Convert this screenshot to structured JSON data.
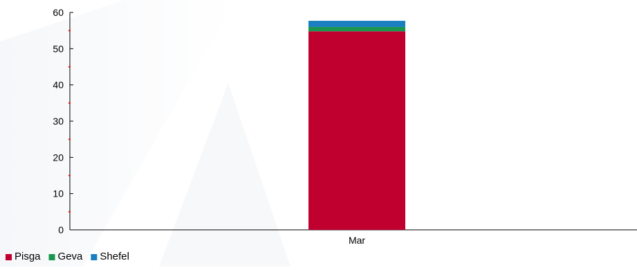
{
  "chart_data": {
    "type": "bar",
    "stacked": true,
    "categories": [
      "Mar"
    ],
    "series": [
      {
        "name": "Pisga",
        "values": [
          54.8
        ],
        "color": "#c0002f"
      },
      {
        "name": "Geva",
        "values": [
          1.2
        ],
        "color": "#1a9650"
      },
      {
        "name": "Shefel",
        "values": [
          1.7
        ],
        "color": "#1a7fc1"
      }
    ],
    "ylim": [
      0,
      60
    ],
    "yticks": [
      0,
      10,
      20,
      30,
      40,
      50,
      60
    ],
    "grid": false,
    "legend_position": "bottom-left",
    "title": "",
    "xlabel": "",
    "ylabel": ""
  }
}
